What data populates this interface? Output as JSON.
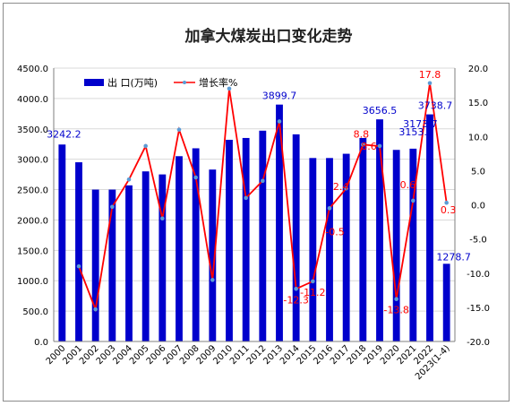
{
  "chart_data": {
    "type": "bar+line",
    "title": "加拿大煤炭出口变化走势",
    "categories": [
      "2000",
      "2001",
      "2002",
      "2003",
      "2004",
      "2005",
      "2006",
      "2007",
      "2008",
      "2009",
      "2010",
      "2011",
      "2012",
      "2013",
      "2014",
      "2015",
      "2016",
      "2017",
      "2018",
      "2019",
      "2020",
      "2021",
      "2022",
      "2023(1-4)"
    ],
    "series": [
      {
        "name": "出 口(万吨)",
        "type": "bar",
        "axis": "left",
        "color": "#0000cc",
        "values": [
          3242.2,
          2950,
          2500,
          2500,
          2570,
          2800,
          2750,
          3050,
          3180,
          2830,
          3320,
          3350,
          3470,
          3899.7,
          3410,
          3020,
          3020,
          3090,
          3350,
          3656.5,
          3153.7,
          3173.7,
          3738.7,
          1278.7
        ]
      },
      {
        "name": "增长率%",
        "type": "line",
        "axis": "right",
        "color": "#ff0000",
        "marker_color": "#5b9bd5",
        "values": [
          null,
          -9.0,
          -15.3,
          -0.3,
          3.7,
          8.6,
          -2.0,
          11.0,
          4.0,
          -11.0,
          17.0,
          1.0,
          3.5,
          12.2,
          -12.3,
          -11.2,
          -0.5,
          2.4,
          8.8,
          8.6,
          -13.8,
          0.6,
          17.8,
          0.3
        ]
      }
    ],
    "bar_labels": [
      {
        "index": 0,
        "text": "3242.2"
      },
      {
        "index": 13,
        "text": "3899.7"
      },
      {
        "index": 19,
        "text": "3656.5"
      },
      {
        "index": 20,
        "text": "3153.7"
      },
      {
        "index": 21,
        "text": "3173.7"
      },
      {
        "index": 22,
        "text": "3738.7"
      },
      {
        "index": 23,
        "text": "1278.7"
      }
    ],
    "line_labels": [
      {
        "index": 14,
        "text": "-12.3"
      },
      {
        "index": 15,
        "text": "-11.2"
      },
      {
        "index": 16,
        "text": "-0.5"
      },
      {
        "index": 17,
        "text": "2.4"
      },
      {
        "index": 18,
        "text": "8.8"
      },
      {
        "index": 19,
        "text": "8.6"
      },
      {
        "index": 20,
        "text": "-13.8"
      },
      {
        "index": 21,
        "text": "0.6"
      },
      {
        "index": 22,
        "text": "17.8"
      },
      {
        "index": 23,
        "text": "0.3"
      }
    ],
    "yleft": {
      "min": 0,
      "max": 4500,
      "step": 500,
      "tick_labels": [
        "0.0",
        "500.0",
        "1000.0",
        "1500.0",
        "2000.0",
        "2500.0",
        "3000.0",
        "3500.0",
        "4000.0",
        "4500.0"
      ]
    },
    "yright": {
      "min": -20,
      "max": 20,
      "step": 5,
      "tick_labels": [
        "-20.0",
        "-15.0",
        "-10.0",
        "-5.0",
        "0.0",
        "5.0",
        "10.0",
        "15.0",
        "20.0"
      ]
    },
    "grid": "horizontal",
    "legend_position": "top-left"
  }
}
